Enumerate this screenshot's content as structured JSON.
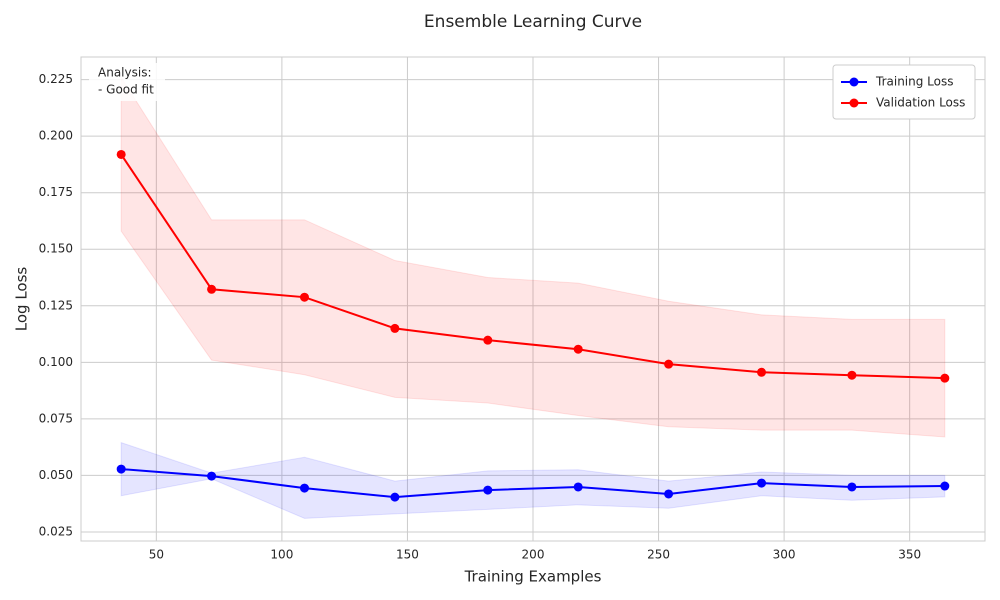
{
  "chart_data": {
    "type": "line",
    "title": "Ensemble Learning Curve",
    "x_label": "Training Examples",
    "y_label": "Log Loss",
    "x": [
      36,
      72,
      109,
      145,
      182,
      218,
      254,
      291,
      327,
      364
    ],
    "series": [
      {
        "name": "Training Loss",
        "color": "#0000ff",
        "values": [
          0.0528,
          0.0497,
          0.0444,
          0.0404,
          0.0435,
          0.0449,
          0.0418,
          0.0466,
          0.0449,
          0.0453
        ],
        "upper": [
          0.0645,
          0.051,
          0.058,
          0.0475,
          0.052,
          0.0525,
          0.0475,
          0.0515,
          0.05,
          0.05
        ],
        "lower": [
          0.041,
          0.0485,
          0.031,
          0.033,
          0.035,
          0.037,
          0.0355,
          0.041,
          0.039,
          0.0405
        ]
      },
      {
        "name": "Validation Loss",
        "color": "#ff0000",
        "values": [
          0.1919,
          0.1323,
          0.1288,
          0.115,
          0.1098,
          0.1058,
          0.0992,
          0.0956,
          0.0943,
          0.093
        ],
        "upper": [
          0.226,
          0.163,
          0.163,
          0.145,
          0.1375,
          0.135,
          0.127,
          0.121,
          0.119,
          0.119
        ],
        "lower": [
          0.158,
          0.101,
          0.0945,
          0.0845,
          0.082,
          0.0765,
          0.0715,
          0.07,
          0.07,
          0.067
        ]
      }
    ],
    "xlim": [
      20,
      380
    ],
    "ylim": [
      0.021,
      0.235
    ],
    "xticks": [
      50,
      100,
      150,
      200,
      250,
      300,
      350
    ],
    "yticks": [
      0.025,
      {
        "value": 0.05,
        "label": "0.050"
      },
      0.075,
      {
        "value": 0.1,
        "label": "0.100"
      },
      0.125,
      {
        "value": 0.15,
        "label": "0.150"
      },
      0.175,
      {
        "value": 0.2,
        "label": "0.200"
      },
      0.225
    ],
    "grid": true,
    "legend": "upper right",
    "annotation": [
      "Analysis:",
      "- Good fit"
    ]
  }
}
